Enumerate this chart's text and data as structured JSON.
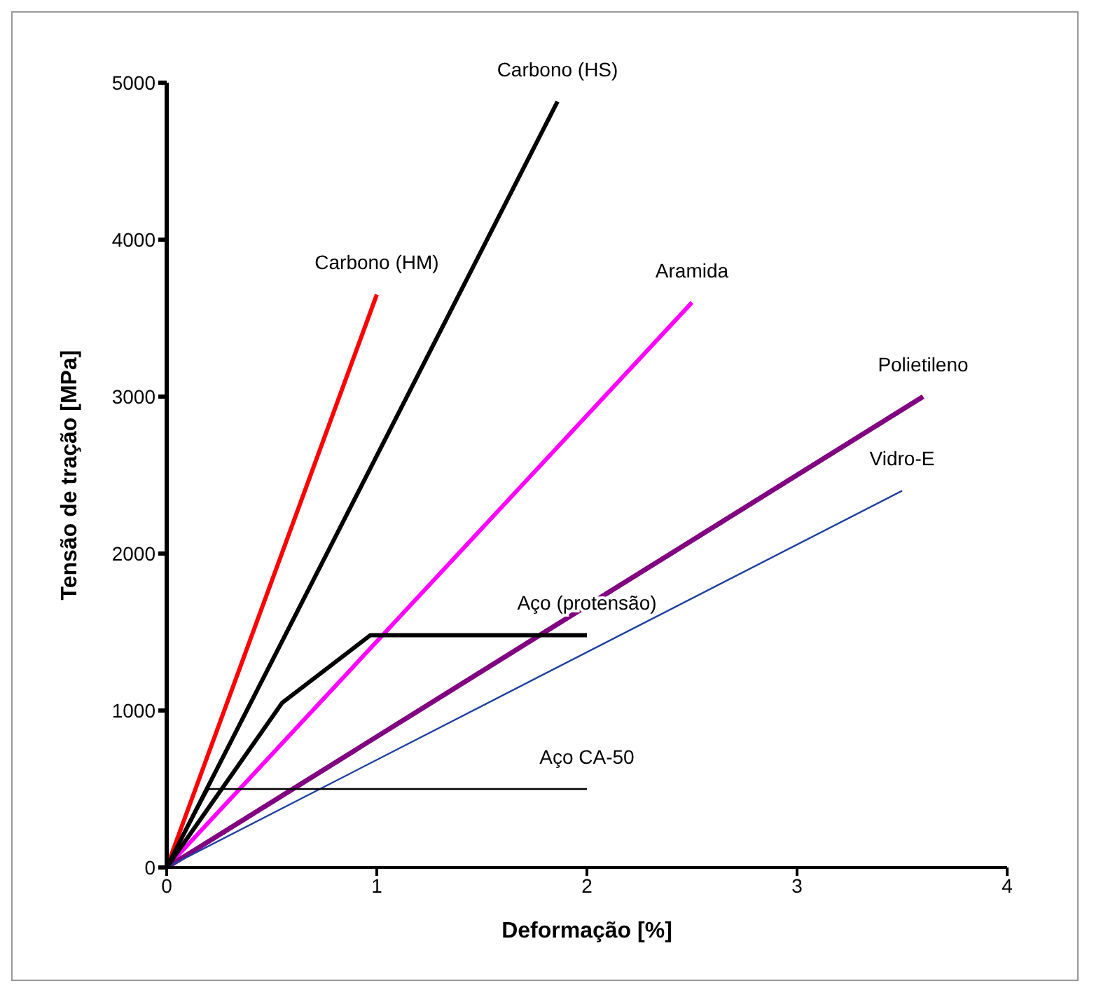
{
  "chart_data": {
    "type": "line",
    "xlabel": "Deformação [%]",
    "ylabel": "Tensão de tração [MPa]",
    "xlim": [
      0,
      4
    ],
    "xticks": [
      0,
      1,
      2,
      3,
      4
    ],
    "ylim": [
      0,
      5000
    ],
    "yticks": [
      0,
      1000,
      2000,
      3000,
      4000,
      5000
    ],
    "grid": false,
    "marker": "none",
    "line_style": "solid",
    "series": [
      {
        "color": "#ff0000",
        "x": [
          0,
          1.0
        ],
        "values": [
          0,
          3650
        ]
      },
      {
        "color": "#000000",
        "x": [
          0,
          1.86
        ],
        "values": [
          0,
          4880
        ]
      },
      {
        "color": "#ff00ff",
        "x": [
          0,
          2.5
        ],
        "values": [
          0,
          3600
        ]
      },
      {
        "color": "#800080",
        "x": [
          0,
          3.6
        ],
        "values": [
          0,
          3000
        ]
      },
      {
        "color": "#1f3f9f",
        "x": [
          0,
          3.5
        ],
        "values": [
          0,
          2400
        ]
      },
      {
        "color": "#000000",
        "x": [
          0,
          0.55,
          0.97,
          2.0
        ],
        "values": [
          0,
          1050,
          1480,
          1480
        ]
      },
      {
        "color": "#000000",
        "x": [
          0,
          0.2,
          2.0
        ],
        "values": [
          0,
          500,
          500
        ]
      }
    ],
    "annotations": [
      {
        "text": "Carbono (HM)",
        "x": 1.0,
        "y": 3650
      },
      {
        "text": "Carbono (HS)",
        "x": 1.86,
        "y": 4880
      },
      {
        "text": "Aramida",
        "x": 2.5,
        "y": 3600
      },
      {
        "text": "Polietileno",
        "x": 3.6,
        "y": 3000
      },
      {
        "text": "Vidro-E",
        "x": 3.5,
        "y": 2400
      },
      {
        "text": "Aço (protensão)",
        "x": 2.0,
        "y": 1480
      },
      {
        "text": "Aço CA-50",
        "x": 2.0,
        "y": 500
      }
    ]
  }
}
